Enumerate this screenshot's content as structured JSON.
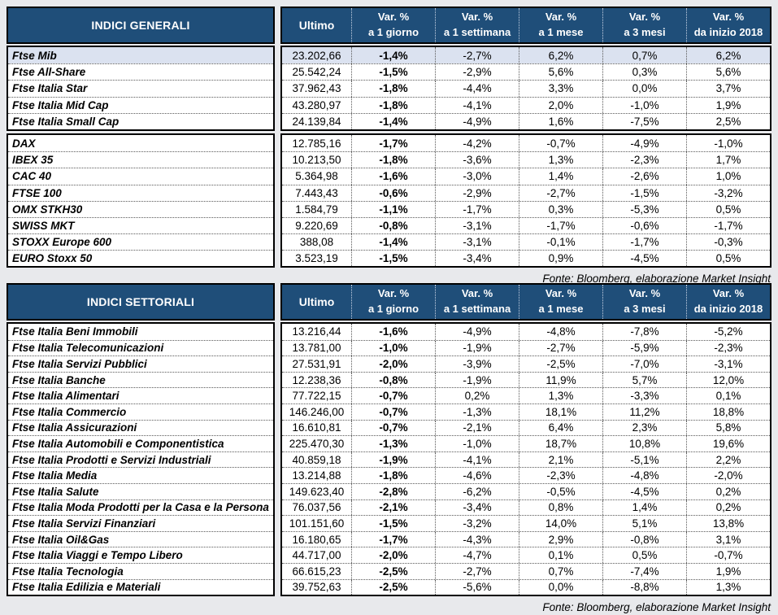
{
  "colors": {
    "header_bg": "#1f4e79",
    "header_text": "#ffffff",
    "highlight_row_bg": "#dbe2f0",
    "page_bg": "#e8e9ec"
  },
  "tables": [
    {
      "title": "INDICI GENERALI",
      "source": "Fonte: Bloomberg, elaborazione Market Insight",
      "col_headers": [
        {
          "top": "Ultimo",
          "bottom": ""
        },
        {
          "top": "Var. %",
          "bottom": "a 1 giorno"
        },
        {
          "top": "Var. %",
          "bottom": "a 1 settimana"
        },
        {
          "top": "Var. %",
          "bottom": "a 1 mese"
        },
        {
          "top": "Var. %",
          "bottom": "a 3 mesi"
        },
        {
          "top": "Var. %",
          "bottom": "da inizio 2018"
        }
      ],
      "sections": [
        {
          "rows": [
            {
              "name": "Ftse Mib",
              "highlight": true,
              "values": [
                "23.202,66",
                "-1,4%",
                "-2,7%",
                "6,2%",
                "0,7%",
                "6,2%"
              ]
            },
            {
              "name": "Ftse All-Share",
              "highlight": false,
              "values": [
                "25.542,24",
                "-1,5%",
                "-2,9%",
                "5,6%",
                "0,3%",
                "5,6%"
              ]
            },
            {
              "name": "Ftse Italia Star",
              "highlight": false,
              "values": [
                "37.962,43",
                "-1,8%",
                "-4,4%",
                "3,3%",
                "0,0%",
                "3,7%"
              ]
            },
            {
              "name": "Ftse Italia Mid Cap",
              "highlight": false,
              "values": [
                "43.280,97",
                "-1,8%",
                "-4,1%",
                "2,0%",
                "-1,0%",
                "1,9%"
              ]
            },
            {
              "name": "Ftse Italia Small Cap",
              "highlight": false,
              "values": [
                "24.139,84",
                "-1,4%",
                "-4,9%",
                "1,6%",
                "-7,5%",
                "2,5%"
              ]
            }
          ]
        },
        {
          "rows": [
            {
              "name": "DAX",
              "highlight": false,
              "values": [
                "12.785,16",
                "-1,7%",
                "-4,2%",
                "-0,7%",
                "-4,9%",
                "-1,0%"
              ]
            },
            {
              "name": "IBEX 35",
              "highlight": false,
              "values": [
                "10.213,50",
                "-1,8%",
                "-3,6%",
                "1,3%",
                "-2,3%",
                "1,7%"
              ]
            },
            {
              "name": "CAC 40",
              "highlight": false,
              "values": [
                "5.364,98",
                "-1,6%",
                "-3,0%",
                "1,4%",
                "-2,6%",
                "1,0%"
              ]
            },
            {
              "name": "FTSE 100",
              "highlight": false,
              "values": [
                "7.443,43",
                "-0,6%",
                "-2,9%",
                "-2,7%",
                "-1,5%",
                "-3,2%"
              ]
            },
            {
              "name": "OMX STKH30",
              "highlight": false,
              "values": [
                "1.584,79",
                "-1,1%",
                "-1,7%",
                "0,3%",
                "-5,3%",
                "0,5%"
              ]
            },
            {
              "name": "SWISS MKT",
              "highlight": false,
              "values": [
                "9.220,69",
                "-0,8%",
                "-3,1%",
                "-1,7%",
                "-0,6%",
                "-1,7%"
              ]
            },
            {
              "name": "STOXX Europe 600",
              "highlight": false,
              "values": [
                "388,08",
                "-1,4%",
                "-3,1%",
                "-0,1%",
                "-1,7%",
                "-0,3%"
              ]
            },
            {
              "name": "EURO Stoxx 50",
              "highlight": false,
              "values": [
                "3.523,19",
                "-1,5%",
                "-3,4%",
                "0,9%",
                "-4,5%",
                "0,5%"
              ]
            }
          ]
        }
      ]
    },
    {
      "title": "INDICI SETTORIALI",
      "source": "Fonte: Bloomberg, elaborazione Market Insight",
      "col_headers": [
        {
          "top": "Ultimo",
          "bottom": ""
        },
        {
          "top": "Var. %",
          "bottom": "a 1 giorno"
        },
        {
          "top": "Var. %",
          "bottom": "a 1 settimana"
        },
        {
          "top": "Var. %",
          "bottom": "a 1 mese"
        },
        {
          "top": "Var. %",
          "bottom": "a 3 mesi"
        },
        {
          "top": "Var. %",
          "bottom": "da inizio 2018"
        }
      ],
      "sections": [
        {
          "rows": [
            {
              "name": "Ftse Italia Beni Immobili",
              "highlight": false,
              "values": [
                "13.216,44",
                "-1,6%",
                "-4,9%",
                "-4,8%",
                "-7,8%",
                "-5,2%"
              ]
            },
            {
              "name": "Ftse Italia Telecomunicazioni",
              "highlight": false,
              "values": [
                "13.781,00",
                "-1,0%",
                "-1,9%",
                "-2,7%",
                "-5,9%",
                "-2,3%"
              ]
            },
            {
              "name": "Ftse Italia Servizi Pubblici",
              "highlight": false,
              "values": [
                "27.531,91",
                "-2,0%",
                "-3,9%",
                "-2,5%",
                "-7,0%",
                "-3,1%"
              ]
            },
            {
              "name": "Ftse Italia Banche",
              "highlight": false,
              "values": [
                "12.238,36",
                "-0,8%",
                "-1,9%",
                "11,9%",
                "5,7%",
                "12,0%"
              ]
            },
            {
              "name": "Ftse Italia Alimentari",
              "highlight": false,
              "values": [
                "77.722,15",
                "-0,7%",
                "0,2%",
                "1,3%",
                "-3,3%",
                "0,1%"
              ]
            },
            {
              "name": "Ftse Italia Commercio",
              "highlight": false,
              "values": [
                "146.246,00",
                "-0,7%",
                "-1,3%",
                "18,1%",
                "11,2%",
                "18,8%"
              ]
            },
            {
              "name": "Ftse Italia Assicurazioni",
              "highlight": false,
              "values": [
                "16.610,81",
                "-0,7%",
                "-2,1%",
                "6,4%",
                "2,3%",
                "5,8%"
              ]
            },
            {
              "name": "Ftse Italia Automobili e Componentistica",
              "highlight": false,
              "values": [
                "225.470,30",
                "-1,3%",
                "-1,0%",
                "18,7%",
                "10,8%",
                "19,6%"
              ]
            },
            {
              "name": "Ftse Italia Prodotti e Servizi Industriali",
              "highlight": false,
              "values": [
                "40.859,18",
                "-1,9%",
                "-4,1%",
                "2,1%",
                "-5,1%",
                "2,2%"
              ]
            },
            {
              "name": "Ftse Italia Media",
              "highlight": false,
              "values": [
                "13.214,88",
                "-1,8%",
                "-4,6%",
                "-2,3%",
                "-4,8%",
                "-2,0%"
              ]
            },
            {
              "name": "Ftse Italia Salute",
              "highlight": false,
              "values": [
                "149.623,40",
                "-2,8%",
                "-6,2%",
                "-0,5%",
                "-4,5%",
                "0,2%"
              ]
            },
            {
              "name": "Ftse Italia Moda Prodotti per la Casa e la Persona",
              "highlight": false,
              "values": [
                "76.037,56",
                "-2,1%",
                "-3,4%",
                "0,8%",
                "1,4%",
                "0,2%"
              ]
            },
            {
              "name": "Ftse Italia Servizi Finanziari",
              "highlight": false,
              "values": [
                "101.151,60",
                "-1,5%",
                "-3,2%",
                "14,0%",
                "5,1%",
                "13,8%"
              ]
            },
            {
              "name": "Ftse Italia Oil&Gas",
              "highlight": false,
              "values": [
                "16.180,65",
                "-1,7%",
                "-4,3%",
                "2,9%",
                "-0,8%",
                "3,1%"
              ]
            },
            {
              "name": "Ftse Italia Viaggi e Tempo Libero",
              "highlight": false,
              "values": [
                "44.717,00",
                "-2,0%",
                "-4,7%",
                "0,1%",
                "0,5%",
                "-0,7%"
              ]
            },
            {
              "name": "Ftse Italia Tecnologia",
              "highlight": false,
              "values": [
                "66.615,23",
                "-2,5%",
                "-2,7%",
                "0,7%",
                "-7,4%",
                "1,9%"
              ]
            },
            {
              "name": "Ftse Italia Edilizia e Materiali",
              "highlight": false,
              "values": [
                "39.752,63",
                "-2,5%",
                "-5,6%",
                "0,0%",
                "-8,8%",
                "1,3%"
              ]
            }
          ]
        }
      ]
    }
  ]
}
